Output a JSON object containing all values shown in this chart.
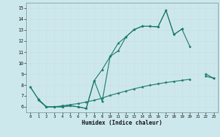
{
  "xlabel": "Humidex (Indice chaleur)",
  "x": [
    0,
    1,
    2,
    3,
    4,
    5,
    6,
    7,
    8,
    9,
    10,
    11,
    12,
    13,
    14,
    15,
    16,
    17,
    18,
    19,
    20,
    21,
    22,
    23
  ],
  "line1": [
    7.8,
    6.7,
    6.0,
    6.0,
    6.0,
    6.1,
    6.0,
    5.85,
    8.4,
    6.5,
    10.6,
    11.8,
    12.4,
    13.05,
    13.35,
    13.35,
    13.3,
    14.8,
    12.6,
    13.1,
    11.5,
    null,
    9.0,
    8.6
  ],
  "line2": [
    7.8,
    6.7,
    6.0,
    6.0,
    6.0,
    6.1,
    6.0,
    5.85,
    8.4,
    9.4,
    10.6,
    11.1,
    12.4,
    13.05,
    13.35,
    13.35,
    13.3,
    14.8,
    12.6,
    13.1,
    null,
    null,
    null,
    null
  ],
  "line3": [
    null,
    6.6,
    6.0,
    6.0,
    6.1,
    6.2,
    6.3,
    6.45,
    6.6,
    6.8,
    7.05,
    7.25,
    7.45,
    7.65,
    7.82,
    7.97,
    8.1,
    8.22,
    8.32,
    8.42,
    8.52,
    null,
    8.8,
    8.6
  ],
  "color": "#1a7a6e",
  "bg_color": "#cde8ec",
  "grid_major_color": "#b8d4d8",
  "grid_minor_color": "#e0f0f2",
  "ylim": [
    5.5,
    15.5
  ],
  "xlim": [
    -0.5,
    23.5
  ],
  "yticks": [
    6,
    7,
    8,
    9,
    10,
    11,
    12,
    13,
    14,
    15
  ],
  "xticks": [
    0,
    1,
    2,
    3,
    4,
    5,
    6,
    7,
    8,
    9,
    10,
    11,
    12,
    13,
    14,
    15,
    16,
    17,
    18,
    19,
    20,
    21,
    22,
    23
  ]
}
